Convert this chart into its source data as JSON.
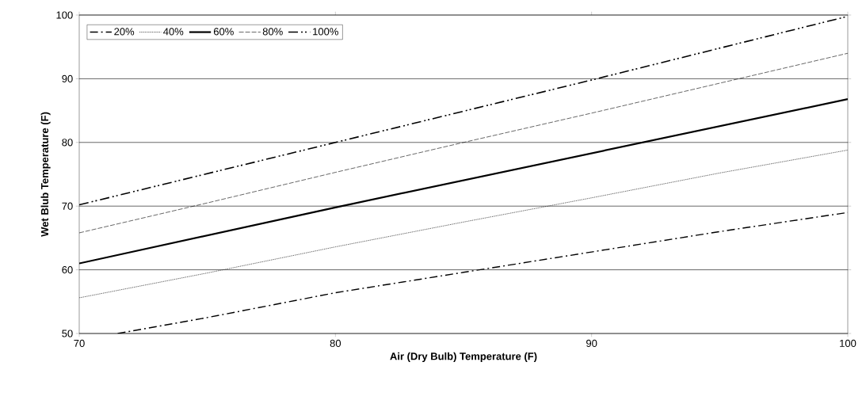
{
  "chart_data": {
    "type": "line",
    "xlabel": "Air (Dry Bulb) Temperature (F)",
    "ylabel": "Wet Blub Temperature (F)",
    "xlim": [
      70,
      100
    ],
    "ylim": [
      50,
      100
    ],
    "xticks": [
      70,
      80,
      90,
      100
    ],
    "yticks": [
      50,
      60,
      70,
      80,
      90,
      100
    ],
    "grid": "y",
    "legend": "top left",
    "marker": "none",
    "series": [
      {
        "name": "20%",
        "color": "#000000",
        "line_style": "dashdot",
        "x": [
          71.5,
          75,
          80,
          85,
          90,
          95,
          100
        ],
        "values": [
          50,
          52.5,
          56.4,
          59.6,
          62.8,
          66,
          69
        ]
      },
      {
        "name": "40%",
        "color": "#000000",
        "line_style": "dotted",
        "x": [
          70,
          75,
          80,
          85,
          90,
          95,
          100
        ],
        "values": [
          55.6,
          59.5,
          63.6,
          67.5,
          71.3,
          75.2,
          78.8
        ]
      },
      {
        "name": "60%",
        "color": "#000000",
        "line_style": "solid",
        "x": [
          70,
          80,
          90,
          100
        ],
        "values": [
          61,
          69.8,
          78.3,
          86.8
        ]
      },
      {
        "name": "80%",
        "color": "#000000",
        "line_style": "dashed",
        "x": [
          70,
          75,
          80,
          85,
          90,
          95,
          100
        ],
        "values": [
          65.8,
          70.5,
          75.3,
          80,
          84.6,
          89.3,
          94
        ]
      },
      {
        "name": "100%",
        "color": "#000000",
        "line_style": "dashdotdot",
        "x": [
          70,
          80,
          90,
          100
        ],
        "values": [
          70.2,
          80,
          89.8,
          99.8
        ]
      }
    ]
  }
}
